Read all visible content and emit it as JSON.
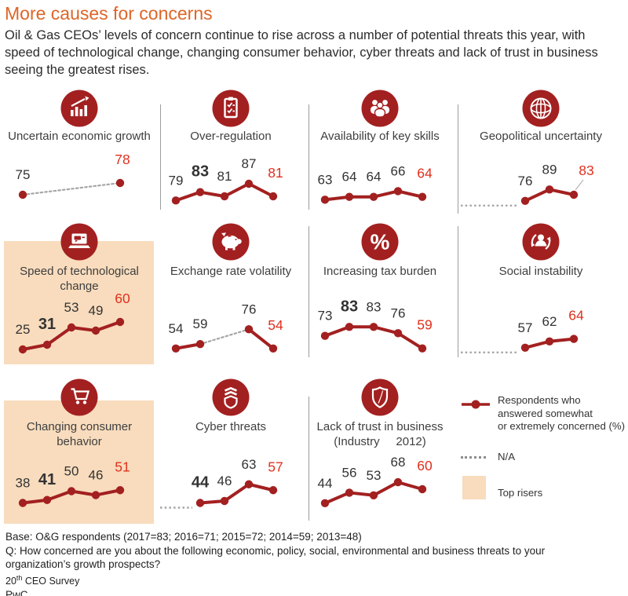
{
  "colors": {
    "accent_orange": "#DE6527",
    "pwc_red": "#A32020",
    "bright_red": "#E0301E",
    "peach": "#F8DCBD",
    "na_gray": "#A6A6A6",
    "divider_gray": "#9C9C9C"
  },
  "header": {
    "title": "More causes for concerns",
    "subtitle": "Oil & Gas CEOs’ levels of concern continue to rise across a number of potential threats this year, with speed of technological change, changing consumer behavior, cyber threats and lack of trust in business seeing the greatest rises."
  },
  "chart_data": [
    {
      "id": "uncertain-economic-growth",
      "type": "line",
      "label_lines": [
        "Uncertain economic growth"
      ],
      "icon": "economic-growth",
      "position": {
        "row": 0,
        "col": 0
      },
      "highlight": false,
      "points": [
        {
          "slot": 0,
          "value": 75
        },
        {
          "slot": 4,
          "value": 78,
          "red": true
        }
      ],
      "dotted_between": [
        [
          0,
          1
        ]
      ],
      "ylim": [
        73,
        81
      ]
    },
    {
      "id": "over-regulation",
      "type": "line",
      "label_lines": [
        "Over-regulation"
      ],
      "icon": "clipboard",
      "position": {
        "row": 0,
        "col": 1
      },
      "highlight": false,
      "points": [
        {
          "slot": 0,
          "value": 79
        },
        {
          "slot": 1,
          "value": 83,
          "bold": true
        },
        {
          "slot": 2,
          "value": 81
        },
        {
          "slot": 3,
          "value": 87
        },
        {
          "slot": 4,
          "value": 81,
          "red": true
        }
      ],
      "ylim": [
        78,
        93
      ]
    },
    {
      "id": "availability-of-key-skills",
      "type": "line",
      "label_lines": [
        "Availability of key skills"
      ],
      "icon": "people",
      "position": {
        "row": 0,
        "col": 2
      },
      "highlight": false,
      "points": [
        {
          "slot": 0,
          "value": 63
        },
        {
          "slot": 1,
          "value": 64
        },
        {
          "slot": 2,
          "value": 64
        },
        {
          "slot": 3,
          "value": 66
        },
        {
          "slot": 4,
          "value": 64,
          "red": true
        }
      ],
      "ylim": [
        62,
        73
      ]
    },
    {
      "id": "geopolitical-uncertainty",
      "type": "line",
      "label_lines": [
        "Geopolitical uncertainty"
      ],
      "icon": "globe",
      "position": {
        "row": 0,
        "col": 3
      },
      "highlight": false,
      "lead_dotted": true,
      "leader_line": true,
      "points": [
        {
          "slot": 2,
          "value": 76
        },
        {
          "slot": 3,
          "value": 89
        },
        {
          "slot": 4,
          "value": 83,
          "red": true
        }
      ],
      "ylim": [
        74,
        110
      ]
    },
    {
      "id": "speed-of-technological-change",
      "type": "line",
      "label_lines": [
        "Speed of technological",
        "change"
      ],
      "icon": "laptop",
      "position": {
        "row": 1,
        "col": 0
      },
      "highlight": true,
      "points": [
        {
          "slot": 0,
          "value": 25
        },
        {
          "slot": 1,
          "value": 31,
          "bold": true
        },
        {
          "slot": 2,
          "value": 53
        },
        {
          "slot": 3,
          "value": 49
        },
        {
          "slot": 4,
          "value": 60,
          "red": true
        }
      ],
      "ylim": [
        24,
        64
      ]
    },
    {
      "id": "exchange-rate-volatility",
      "type": "line",
      "label_lines": [
        "Exchange rate volatility"
      ],
      "icon": "piggy-bank",
      "position": {
        "row": 1,
        "col": 1
      },
      "highlight": false,
      "points": [
        {
          "slot": 0,
          "value": 54
        },
        {
          "slot": 1,
          "value": 59
        },
        {
          "slot": 3,
          "value": 76
        },
        {
          "slot": 4,
          "value": 54,
          "red": true
        }
      ],
      "dotted_between": [
        [
          1,
          2
        ]
      ],
      "ylim": [
        52,
        88
      ]
    },
    {
      "id": "increasing-tax-burden",
      "type": "line",
      "label_lines": [
        "Increasing tax burden"
      ],
      "icon": "percent",
      "position": {
        "row": 1,
        "col": 2
      },
      "highlight": false,
      "points": [
        {
          "slot": 0,
          "value": 73
        },
        {
          "slot": 1,
          "value": 83,
          "bold": true
        },
        {
          "slot": 2,
          "value": 83
        },
        {
          "slot": 3,
          "value": 76
        },
        {
          "slot": 4,
          "value": 59,
          "red": true
        }
      ],
      "ylim": [
        57,
        92
      ]
    },
    {
      "id": "social-instability",
      "type": "line",
      "label_lines": [
        "Social instability"
      ],
      "icon": "social",
      "position": {
        "row": 1,
        "col": 3
      },
      "highlight": false,
      "lead_dotted": true,
      "points": [
        {
          "slot": 2,
          "value": 57
        },
        {
          "slot": 3,
          "value": 62
        },
        {
          "slot": 4,
          "value": 64,
          "red": true
        }
      ],
      "ylim": [
        55,
        80
      ]
    },
    {
      "id": "changing-consumer-behavior",
      "type": "line",
      "label_lines": [
        "Changing consumer",
        "behavior"
      ],
      "icon": "cart",
      "position": {
        "row": 2,
        "col": 0
      },
      "highlight": true,
      "points": [
        {
          "slot": 0,
          "value": 38
        },
        {
          "slot": 1,
          "value": 41,
          "bold": true
        },
        {
          "slot": 2,
          "value": 50
        },
        {
          "slot": 3,
          "value": 46
        },
        {
          "slot": 4,
          "value": 51,
          "red": true
        }
      ],
      "ylim": [
        36,
        68
      ]
    },
    {
      "id": "cyber-threats",
      "type": "line",
      "label_lines": [
        "Cyber threats"
      ],
      "icon": "cyber-shield",
      "position": {
        "row": 2,
        "col": 1
      },
      "highlight": false,
      "lead_dotted": true,
      "points": [
        {
          "slot": 1,
          "value": 44,
          "bold": true
        },
        {
          "slot": 2,
          "value": 46
        },
        {
          "slot": 3,
          "value": 63
        },
        {
          "slot": 4,
          "value": 57,
          "red": true
        }
      ],
      "ylim": [
        42,
        74
      ]
    },
    {
      "id": "lack-of-trust-in-business",
      "type": "line",
      "label_lines": [
        "Lack of trust in business",
        "(Industry     2012)"
      ],
      "icon": "trust-shield",
      "position": {
        "row": 2,
        "col": 2
      },
      "highlight": false,
      "points": [
        {
          "slot": 0,
          "value": 44
        },
        {
          "slot": 1,
          "value": 56
        },
        {
          "slot": 2,
          "value": 53
        },
        {
          "slot": 3,
          "value": 68
        },
        {
          "slot": 4,
          "value": 60,
          "red": true
        }
      ],
      "ylim": [
        42,
        78
      ]
    }
  ],
  "legend": {
    "series_line1": "Respondents who",
    "series_line2": "answered somewhat",
    "series_line3": "or extremely concerned (%)",
    "na_label": "N/A",
    "top_risers_label": "Top risers"
  },
  "footer": {
    "base": "Base: O&G respondents (2017=83; 2016=71; 2015=72; 2014=59; 2013=48)",
    "question": "Q: How concerned are you about the following economic, policy, social, environmental and business threats to your organization’s growth prospects?",
    "survey_num": "20",
    "survey_sup": "th",
    "survey_rest": " CEO Survey",
    "brand": "PwC"
  }
}
